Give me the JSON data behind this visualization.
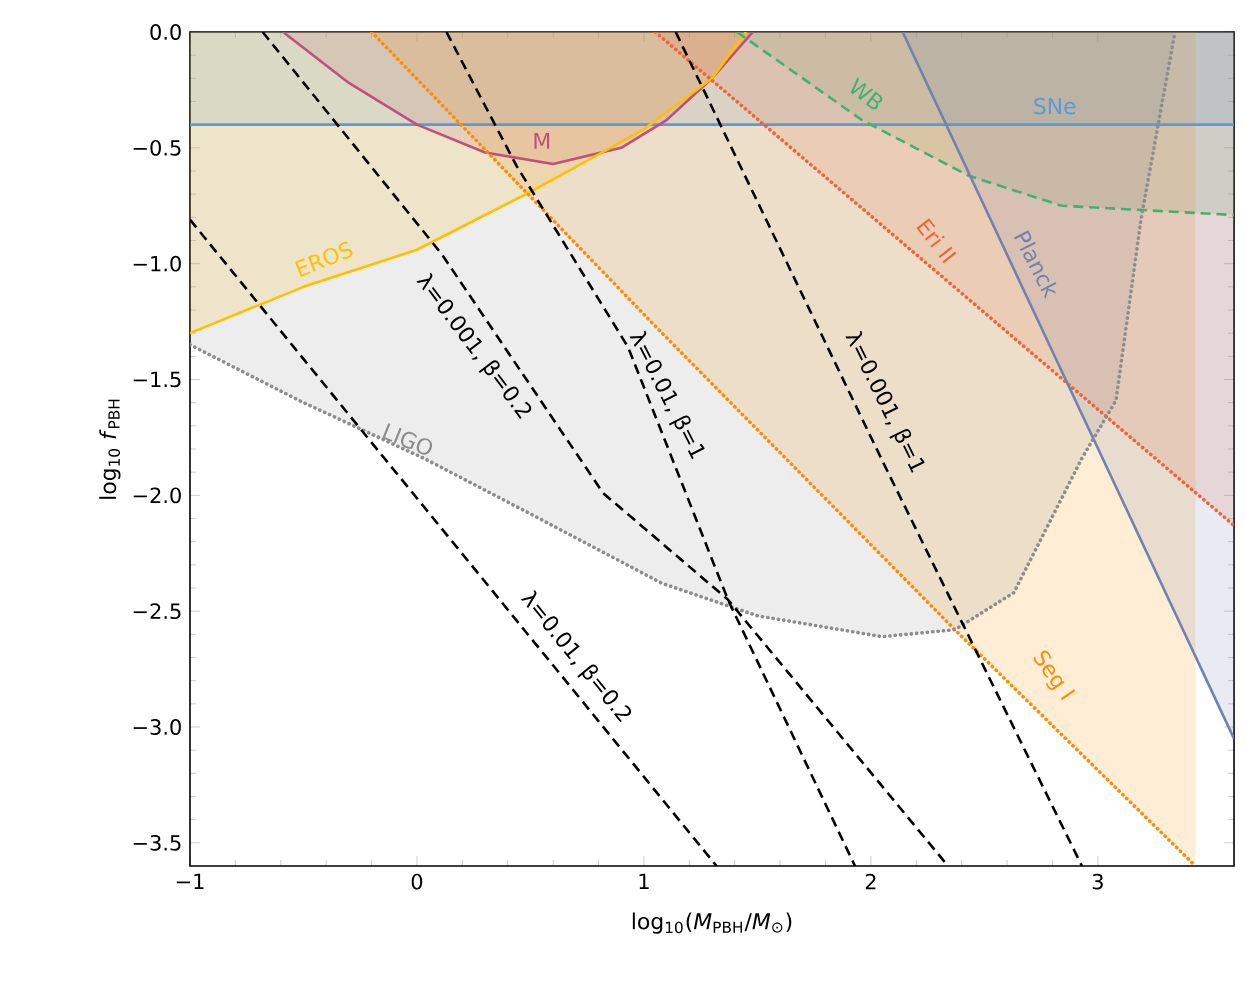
{
  "chart_data": {
    "type": "line",
    "xlabel": "log$_{10}$(*M*$_{PBH}$/*M*$_{⊙}$)",
    "ylabel": "log$_{10}$ *f*$_{PBH}$",
    "xlim": [
      -1,
      3.6
    ],
    "ylim": [
      -3.6,
      0
    ],
    "xticks": [
      {
        "value": -1,
        "label": "−1"
      },
      0,
      1,
      2,
      3
    ],
    "yticks": [
      {
        "value": 0,
        "label": "0.0"
      },
      {
        "value": -0.5,
        "label": "−0.5"
      },
      {
        "value": -1,
        "label": "−1.0"
      },
      {
        "value": -1.5,
        "label": "−1.5"
      },
      {
        "value": -2,
        "label": "−2.0"
      },
      {
        "value": -2.5,
        "label": "−2.5"
      },
      {
        "value": -3,
        "label": "−3.0"
      },
      {
        "value": -3.5,
        "label": "−3.5"
      }
    ],
    "grid": false,
    "series": [
      {
        "name": "SNe",
        "type": "area",
        "color": "#5b9bd5",
        "line_style": "solid",
        "x": [
          -1,
          3.6
        ],
        "values": [
          -0.4,
          -0.4
        ]
      },
      {
        "name": "M",
        "type": "area",
        "color": "#c0507a",
        "line_style": "solid",
        "x": [
          -0.59,
          -0.3,
          0,
          0.3,
          0.6,
          0.9,
          1.1,
          1.3,
          1.48
        ],
        "values": [
          0,
          -0.22,
          -0.4,
          -0.52,
          -0.57,
          -0.5,
          -0.38,
          -0.2,
          0
        ]
      },
      {
        "name": "EROS",
        "type": "area",
        "color": "#ffc000",
        "line_style": "solid",
        "x": [
          -1,
          -0.5,
          0,
          0.5,
          1,
          1.3,
          1.45
        ],
        "values": [
          -1.3,
          -1.1,
          -0.94,
          -0.69,
          -0.42,
          -0.2,
          0
        ]
      },
      {
        "name": "WB",
        "type": "area",
        "color": "#3cb371",
        "line_style": "dashed",
        "x": [
          1.41,
          1.96,
          2.43,
          2.84,
          3.6
        ],
        "values": [
          0,
          -0.38,
          -0.62,
          -0.75,
          -0.79
        ]
      },
      {
        "name": "Eri II",
        "type": "area",
        "color": "#f0643c",
        "line_style": "dotted",
        "x": [
          1.05,
          3.6
        ],
        "values": [
          0,
          -2.13
        ]
      },
      {
        "name": "Seg I",
        "type": "area",
        "color": "#ff8c00",
        "line_style": "dotted",
        "x": [
          -0.2,
          1.08,
          2.37,
          3.43
        ],
        "values": [
          0,
          -1.3,
          -2.58,
          -3.6
        ]
      },
      {
        "name": "Planck",
        "type": "area",
        "color": "#6f82b0",
        "line_style": "solid",
        "x": [
          2.14,
          3.6
        ],
        "values": [
          0,
          -3.05
        ]
      },
      {
        "name": "LIGO",
        "type": "area",
        "color": "#8c8c8c",
        "line_style": "dotted",
        "x": [
          -1,
          -0.5,
          0.03,
          0.5,
          1.08,
          1.5,
          2.05,
          2.37,
          2.63,
          2.93,
          3.08,
          3.19,
          3.34
        ],
        "values": [
          -1.35,
          -1.6,
          -1.84,
          -2.08,
          -2.38,
          -2.52,
          -2.61,
          -2.58,
          -2.42,
          -1.84,
          -1.59,
          -0.81,
          0
        ]
      },
      {
        "name": "λ=0.001, β=0.2",
        "color": "#000000",
        "line_style": "dashed",
        "x": [
          -0.68,
          0.11,
          0.82,
          1.37,
          2.34
        ],
        "values": [
          0,
          -0.96,
          -1.99,
          -2.45,
          -3.6
        ]
      },
      {
        "name": "λ=0.01, β=1",
        "color": "#000000",
        "line_style": "dashed",
        "x": [
          0.13,
          0.44,
          0.93,
          1.37,
          1.93
        ],
        "values": [
          0,
          -0.58,
          -1.36,
          -2.45,
          -3.6
        ]
      },
      {
        "name": "λ=0.001, β=1",
        "color": "#000000",
        "line_style": "dashed",
        "x": [
          1.14,
          2.05,
          2.93
        ],
        "values": [
          0,
          -1.85,
          -3.6
        ]
      },
      {
        "name": "λ=0.01, β=0.2",
        "color": "#000000",
        "line_style": "dashed",
        "x": [
          -1,
          1.32
        ],
        "values": [
          -0.81,
          -3.6
        ]
      }
    ]
  }
}
